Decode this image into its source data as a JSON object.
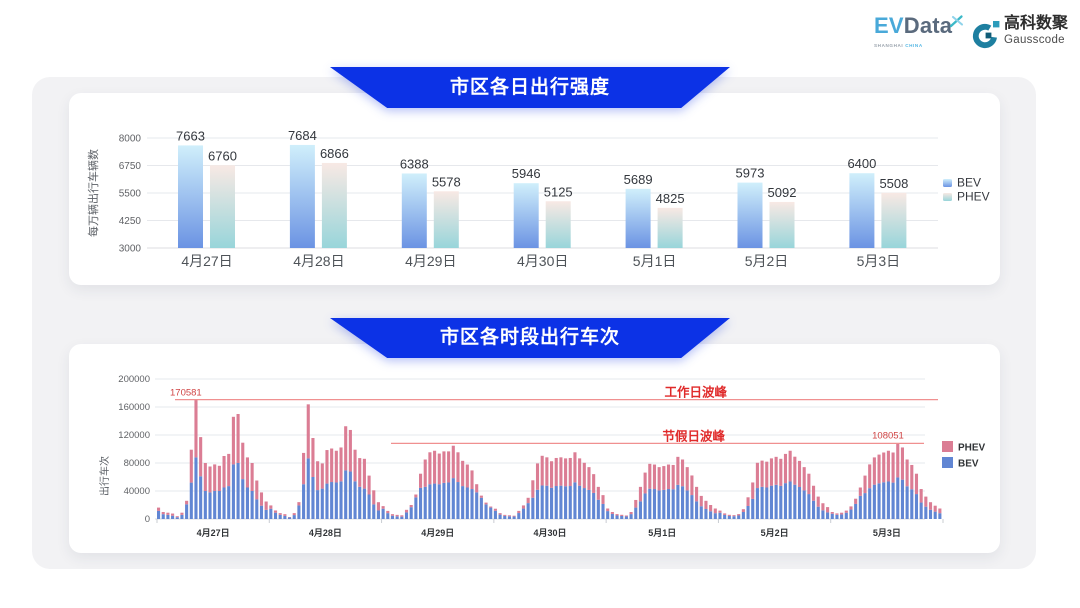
{
  "page": {
    "background": "#ffffff",
    "panel_background": "#f2f2f4",
    "card_background": "#ffffff",
    "ribbon_color": "#0c32e6"
  },
  "logo": {
    "evdata": {
      "ev": "EV",
      "data": "Data",
      "sub_left": "SHANGHAI",
      "sub_right": "CHINA",
      "ev_color": "#49a9d9",
      "data_color": "#5a6a7d",
      "sub_left_color": "#9aa3ad",
      "sub_right_color": "#54b7e4"
    },
    "gausscode": {
      "cn": "高科数聚",
      "en": "Gausscode",
      "icon_color": "#1f7fa2",
      "cn_color": "#2d2d2d",
      "en_color": "#4c4c4c"
    }
  },
  "chart_data": [
    {
      "type": "bar",
      "title": "市区各日出行强度",
      "ylabel": "每万辆出行车辆数",
      "xlabel": "",
      "categories": [
        "4月27日",
        "4月28日",
        "4月29日",
        "4月30日",
        "5月1日",
        "5月2日",
        "5月3日"
      ],
      "series": [
        {
          "name": "BEV",
          "values": [
            7663,
            7684,
            6388,
            5946,
            5689,
            5973,
            6400
          ]
        },
        {
          "name": "PHEV",
          "values": [
            6760,
            6866,
            5578,
            5125,
            4825,
            5092,
            5508
          ]
        }
      ],
      "ylim": [
        3000,
        8000
      ],
      "yticks": [
        3000,
        4250,
        5500,
        6750,
        8000
      ],
      "grid": true,
      "legend": [
        "BEV",
        "PHEV"
      ],
      "legend_position": "right",
      "colors": {
        "bev_gradient": [
          "#d0effb",
          "#6b93e3"
        ],
        "phev_gradient": [
          "#f8e9e4",
          "#98d5da"
        ]
      }
    },
    {
      "type": "bar",
      "stacked": true,
      "title": "市区各时段出行车次",
      "ylabel": "出行车次",
      "xlabel": "",
      "categories": [
        "4月27日",
        "4月28日",
        "4月29日",
        "4月30日",
        "5月1日",
        "5月2日",
        "5月3日"
      ],
      "hours_per_day": 24,
      "series": [
        {
          "name": "BEV",
          "color": "#6186d3",
          "values_by_day": [
            [
              11600,
              6900,
              5900,
              4700,
              2500,
              5900,
              21000,
              52000,
              88000,
              61000,
              40000,
              38000,
              40000,
              40000,
              45000,
              47000,
              78000,
              80000,
              57000,
              45000,
              40000,
              28000,
              19000,
              13000
            ],
            [
              14700,
              9000,
              5900,
              4400,
              2200,
              5600,
              19400,
              49700,
              86600,
              60000,
              41300,
              43400,
              50600,
              52800,
              52200,
              53800,
              69400,
              67800,
              53800,
              46000,
              43400,
              35000,
              20900,
              12200
            ],
            [
              14700,
              8400,
              4700,
              3800,
              3400,
              9400,
              16900,
              30900,
              44400,
              45900,
              49700,
              50600,
              49700,
              51600,
              52200,
              58400,
              52800,
              47000,
              45000,
              42800,
              38100,
              30300,
              20900,
              16300
            ],
            [
              11800,
              6300,
              4400,
              3900,
              3500,
              8500,
              14900,
              22700,
              30400,
              41700,
              47900,
              47600,
              44600,
              47100,
              47600,
              46800,
              47100,
              52400,
              47600,
              44200,
              41500,
              37200,
              27500,
              21500
            ],
            [
              11300,
              7200,
              5000,
              4300,
              3600,
              7000,
              16300,
              25200,
              36500,
              43300,
              42800,
              40800,
              41600,
              42800,
              42500,
              48800,
              46800,
              40800,
              34200,
              25200,
              18200,
              14300,
              11000,
              8300
            ],
            [
              9000,
              5800,
              4300,
              4000,
              5000,
              10000,
              18600,
              28700,
              44200,
              45900,
              45000,
              47600,
              48800,
              47300,
              51200,
              53600,
              49000,
              45700,
              40800,
              35600,
              26100,
              17600,
              12400,
              9400
            ],
            [
              7500,
              6000,
              6500,
              9000,
              13500,
              21500,
              33000,
              37000,
              44000,
              49000,
              51000,
              52500,
              53600,
              52000,
              59400,
              56200,
              46800,
              42500,
              35600,
              23500,
              17600,
              13200,
              10500,
              8300
            ]
          ]
        },
        {
          "name": "PHEV",
          "color": "#db7d94",
          "values_by_day": [
            [
              4700,
              3100,
              3100,
              3100,
              1500,
              3100,
              5000,
              47000,
              82581,
              56000,
              40000,
              37000,
              38000,
              36000,
              45000,
              46000,
              68000,
              70000,
              52000,
              43000,
              40000,
              27000,
              19000,
              12000
            ],
            [
              4700,
              3200,
              2500,
              2500,
              600,
              2800,
              4700,
              44700,
              77200,
              55700,
              41200,
              36000,
              47900,
              47900,
              45300,
              48400,
              63100,
              59400,
              45200,
              41000,
              42600,
              27000,
              20100,
              11800
            ],
            [
              3700,
              3200,
              2200,
              2100,
              1900,
              3700,
              3100,
              4100,
              20300,
              39100,
              45600,
              46900,
              43800,
              45000,
              44400,
              46300,
              42500,
              36100,
              32800,
              26600,
              11600,
              3100,
              2500,
              1500
            ],
            [
              2900,
              2100,
              1500,
              1400,
              1200,
              3100,
              4500,
              7600,
              24900,
              37700,
              42400,
              40500,
              37900,
              40100,
              40500,
              39800,
              40100,
              42900,
              39000,
              36100,
              32600,
              26900,
              18400,
              12600
            ],
            [
              3700,
              2800,
              2000,
              1700,
              1400,
              3000,
              10900,
              20700,
              29800,
              35500,
              35000,
              33300,
              34000,
              35000,
              34700,
              40000,
              38200,
              33300,
              28000,
              20700,
              14800,
              11700,
              9000,
              6700
            ],
            [
              3000,
              2200,
              1700,
              1500,
              2000,
              4000,
              12400,
              23500,
              36100,
              37500,
              36900,
              39000,
              40000,
              38700,
              41800,
              43900,
              40000,
              37300,
              33300,
              29100,
              21400,
              14400,
              10100,
              7600
            ],
            [
              2500,
              2000,
              2500,
              3000,
              4500,
              7500,
              12000,
              25000,
              34000,
              39000,
              41000,
              42500,
              43900,
              43000,
              48651,
              46000,
              38200,
              34700,
              29100,
              19300,
              14400,
              10800,
              8500,
              6700
            ]
          ]
        }
      ],
      "ylim": [
        0,
        200000
      ],
      "yticks": [
        0,
        40000,
        80000,
        120000,
        160000,
        200000
      ],
      "grid": true,
      "legend": [
        "PHEV",
        "BEV"
      ],
      "legend_position": "right",
      "annotations": [
        {
          "name": "workday_peak",
          "label": "工作日波峰",
          "value": 170581,
          "value_label": "170581",
          "line_color": "#f09090",
          "text_color": "#e02a2a",
          "number_color": "#d04343"
        },
        {
          "name": "holiday_peak",
          "label": "节假日波峰",
          "value": 108051,
          "value_label": "108051",
          "line_color": "#f09090",
          "text_color": "#e02a2a",
          "number_color": "#d04343"
        }
      ]
    }
  ]
}
